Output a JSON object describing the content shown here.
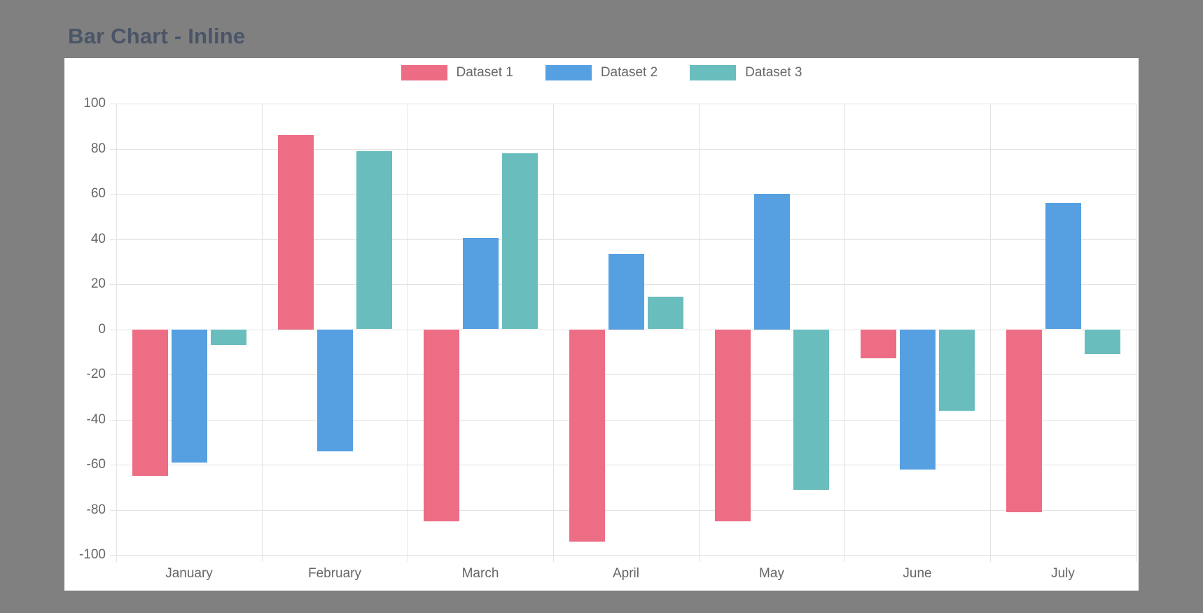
{
  "page": {
    "title": "Bar Chart - Inline",
    "background_color": "#808080",
    "panel_color": "#ffffff",
    "title_color": "#4a5568"
  },
  "chart_data": {
    "type": "bar",
    "title": "Bar Chart - Inline",
    "categories": [
      "January",
      "February",
      "March",
      "April",
      "May",
      "June",
      "July"
    ],
    "series": [
      {
        "name": "Dataset 1",
        "color": "#ed6d85",
        "values": [
          -65,
          86,
          -85,
          -94,
          -85,
          -13,
          -81
        ]
      },
      {
        "name": "Dataset 2",
        "color": "#56a0e2",
        "values": [
          -59,
          -54,
          40.5,
          33.5,
          60,
          -62,
          56
        ]
      },
      {
        "name": "Dataset 3",
        "color": "#6abdbd",
        "values": [
          -7,
          79,
          78,
          14.5,
          -71,
          -36,
          -11
        ]
      }
    ],
    "ylim": [
      -100,
      100
    ],
    "ytick_step": 20,
    "ytick_labels": [
      "100",
      "80",
      "60",
      "40",
      "20",
      "0",
      "-20",
      "-40",
      "-60",
      "-80",
      "-100"
    ],
    "xlabel": "",
    "ylabel": "",
    "grid": true,
    "legend_position": "top",
    "axis_text_color": "#666666",
    "grid_color": "#e3e3e3"
  }
}
